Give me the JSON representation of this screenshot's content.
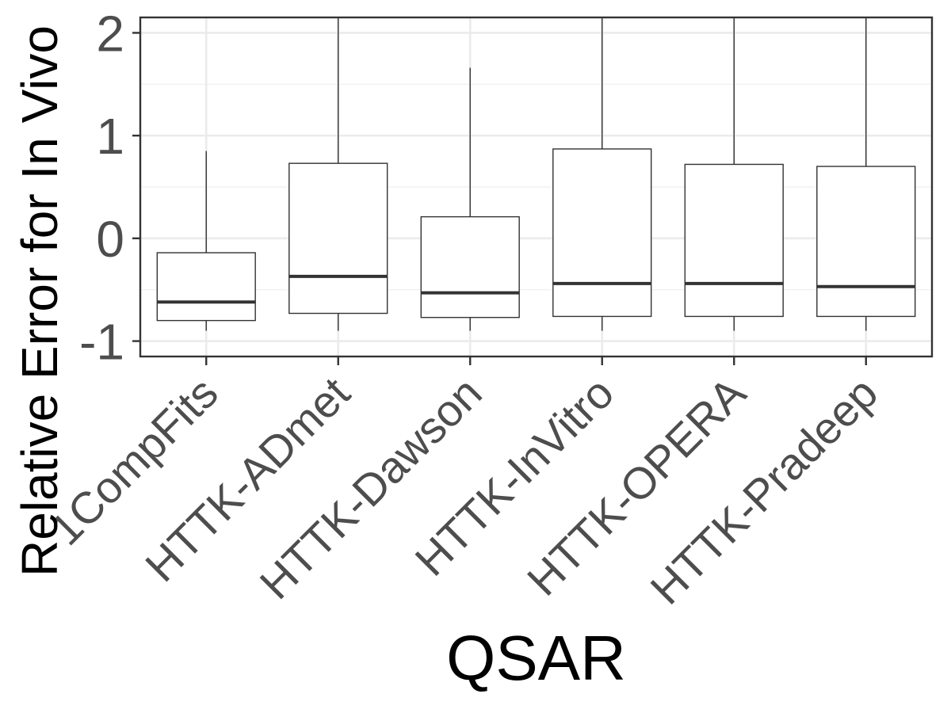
{
  "chart_data": {
    "type": "boxplot",
    "xlabel": "QSAR",
    "ylabel": "Relative Error for In Vivo",
    "ylim": [
      -1.15,
      2.15
    ],
    "yticks": [
      -1,
      0,
      1,
      2
    ],
    "ytick_labels": [
      "-1",
      "0",
      "1",
      "2"
    ],
    "grid": true,
    "categories": [
      "1CompFits",
      "HTTK-ADmet",
      "HTTK-Dawson",
      "HTTK-InVitro",
      "HTTK-OPERA",
      "HTTK-Pradeep"
    ],
    "boxes": [
      {
        "category": "1CompFits",
        "whisker_low": -0.9,
        "q1": -0.8,
        "median": -0.62,
        "q3": -0.14,
        "whisker_high": 0.85
      },
      {
        "category": "HTTK-ADmet",
        "whisker_low": -0.9,
        "q1": -0.73,
        "median": -0.37,
        "q3": 0.73,
        "whisker_high": 2.15
      },
      {
        "category": "HTTK-Dawson",
        "whisker_low": -0.9,
        "q1": -0.77,
        "median": -0.53,
        "q3": 0.21,
        "whisker_high": 1.66
      },
      {
        "category": "HTTK-InVitro",
        "whisker_low": -0.9,
        "q1": -0.76,
        "median": -0.44,
        "q3": 0.87,
        "whisker_high": 2.15
      },
      {
        "category": "HTTK-OPERA",
        "whisker_low": -0.9,
        "q1": -0.76,
        "median": -0.44,
        "q3": 0.72,
        "whisker_high": 2.15
      },
      {
        "category": "HTTK-Pradeep",
        "whisker_low": -0.9,
        "q1": -0.76,
        "median": -0.47,
        "q3": 0.7,
        "whisker_high": 2.15
      }
    ],
    "colors": {
      "box_fill": "#ffffff",
      "box_stroke": "#333333",
      "median": "#333333",
      "grid_major": "#ebebeb",
      "grid_minor": "#f2f2f2",
      "panel_border": "#333333",
      "tick_text": "#4d4d4d",
      "title_text": "#000000"
    }
  }
}
